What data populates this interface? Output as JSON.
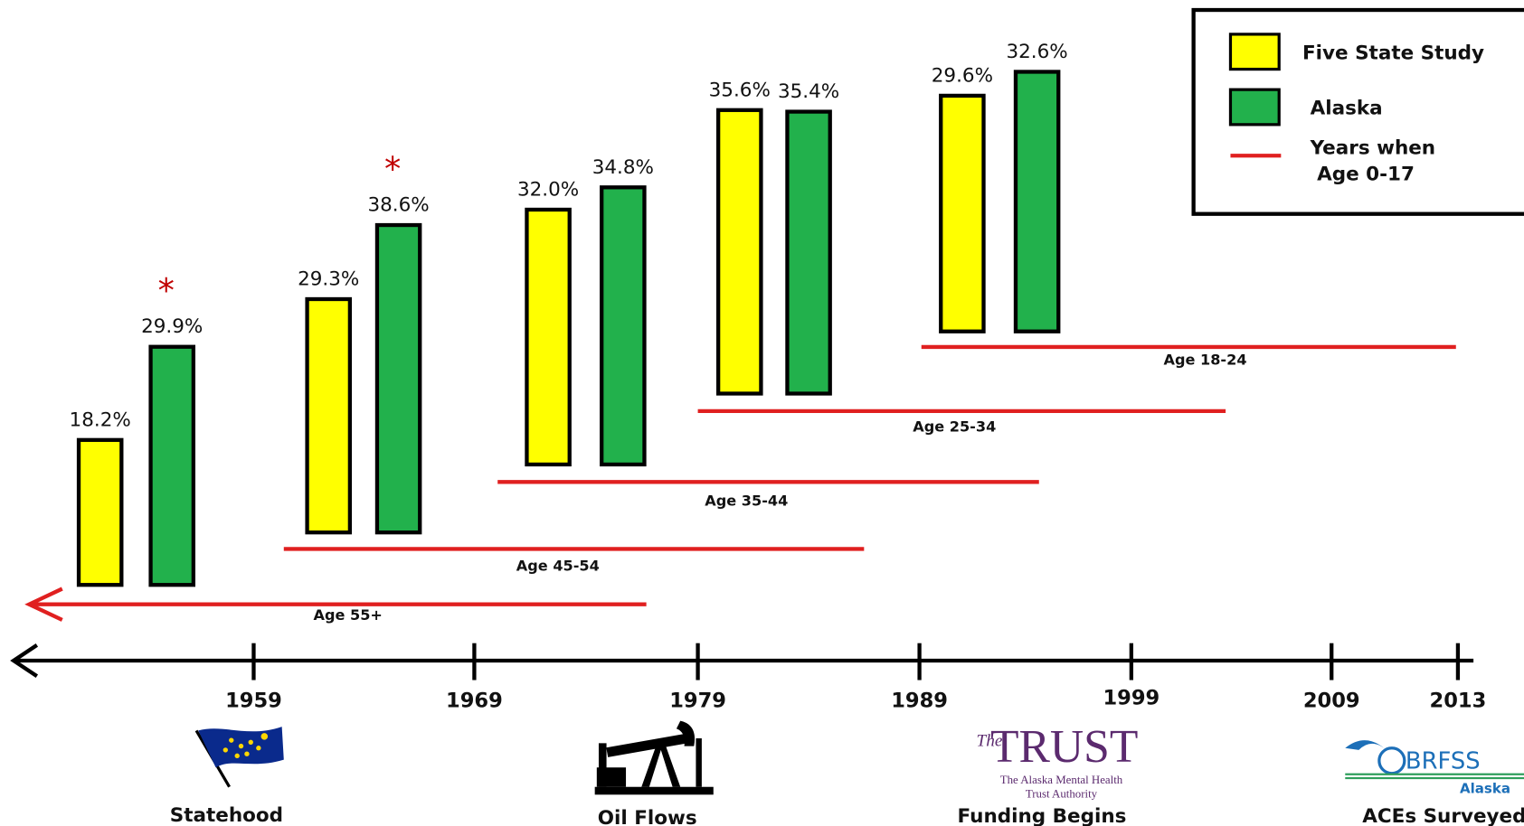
{
  "chart_data": {
    "type": "bar",
    "categories": [
      "Age 55+",
      "Age 45-54",
      "Age 35-44",
      "Age 25-34",
      "Age 18-24"
    ],
    "series": [
      {
        "name": "Five State Study",
        "color": "#ffff00",
        "values": [
          18.2,
          29.3,
          32.0,
          35.6,
          29.6
        ],
        "value_labels": [
          "18.2%",
          "29.3%",
          "32.0%",
          "35.6%",
          "29.6%"
        ]
      },
      {
        "name": "Alaska",
        "color": "#22b14c",
        "values": [
          29.9,
          38.6,
          34.8,
          35.4,
          32.6
        ],
        "value_labels": [
          "29.9%",
          "38.6%",
          "34.8%",
          "35.4%",
          "32.6%"
        ],
        "annotations": [
          "*",
          "*",
          null,
          null,
          null
        ]
      }
    ],
    "period_line": {
      "color": "#e02020",
      "label": [
        "Years when",
        "Age 0-17"
      ]
    },
    "timeline": [
      "1959",
      "1969",
      "1979",
      "1989",
      "1999",
      "2009",
      "2013"
    ],
    "events": [
      "Statehood",
      "Oil Flows",
      "Funding Begins",
      "ACEs Surveyed"
    ],
    "logos": {
      "trust": [
        "The",
        "TRUST",
        "The Alaska Mental Health",
        "Trust Authority"
      ],
      "brfss": [
        "BRFSS",
        "Alaska"
      ]
    }
  }
}
